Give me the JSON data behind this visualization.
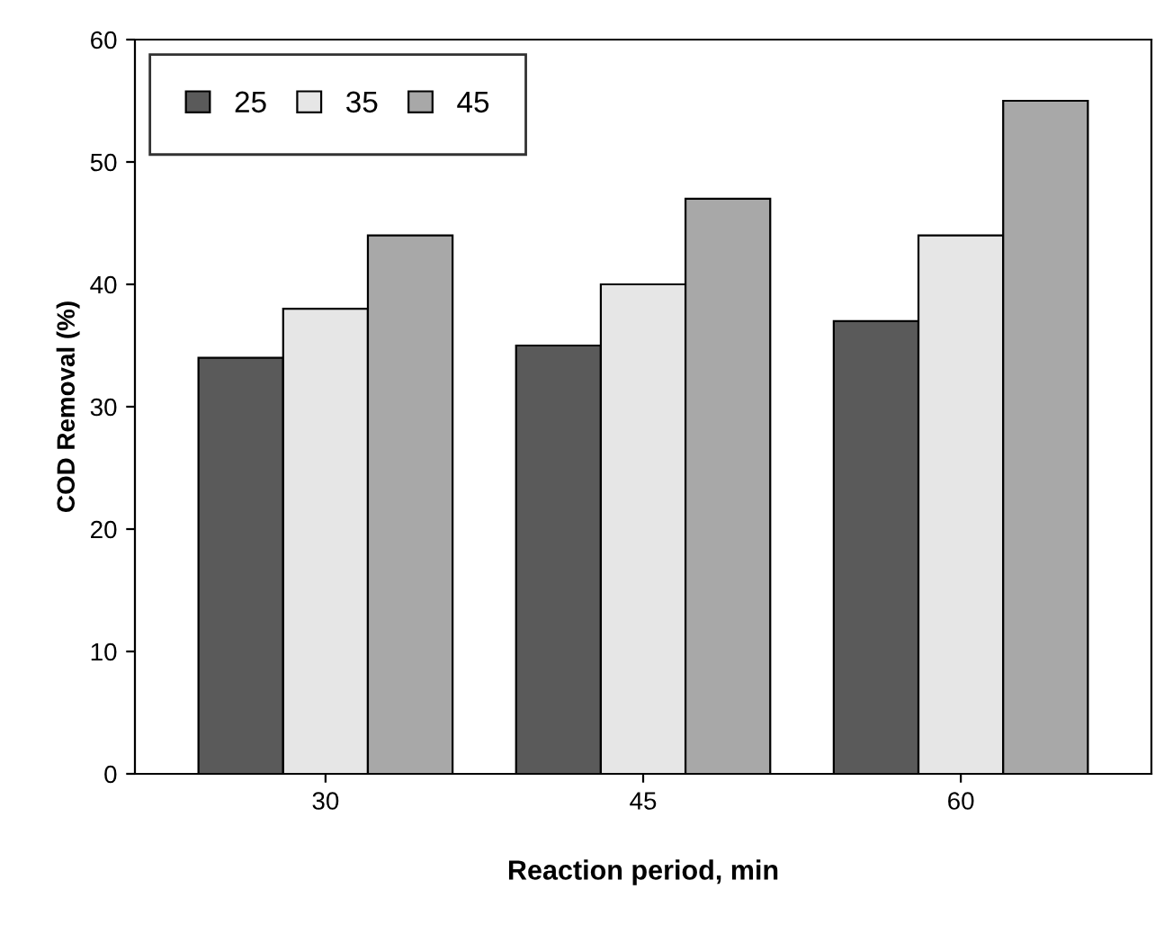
{
  "chart_data": {
    "type": "bar",
    "xlabel": "Reaction period, min",
    "ylabel": "COD Removal (%)",
    "categories": [
      "30",
      "45",
      "60"
    ],
    "series": [
      {
        "name": "25",
        "color": "#5a5a5a",
        "values": [
          34,
          35,
          37
        ]
      },
      {
        "name": "35",
        "color": "#e6e6e6",
        "values": [
          38,
          40,
          44
        ]
      },
      {
        "name": "45",
        "color": "#a8a8a8",
        "values": [
          44,
          47,
          55
        ]
      }
    ],
    "ylim": [
      0,
      60
    ],
    "yticks": [
      0,
      10,
      20,
      30,
      40,
      50,
      60
    ],
    "grid": false,
    "legend": "top left"
  }
}
